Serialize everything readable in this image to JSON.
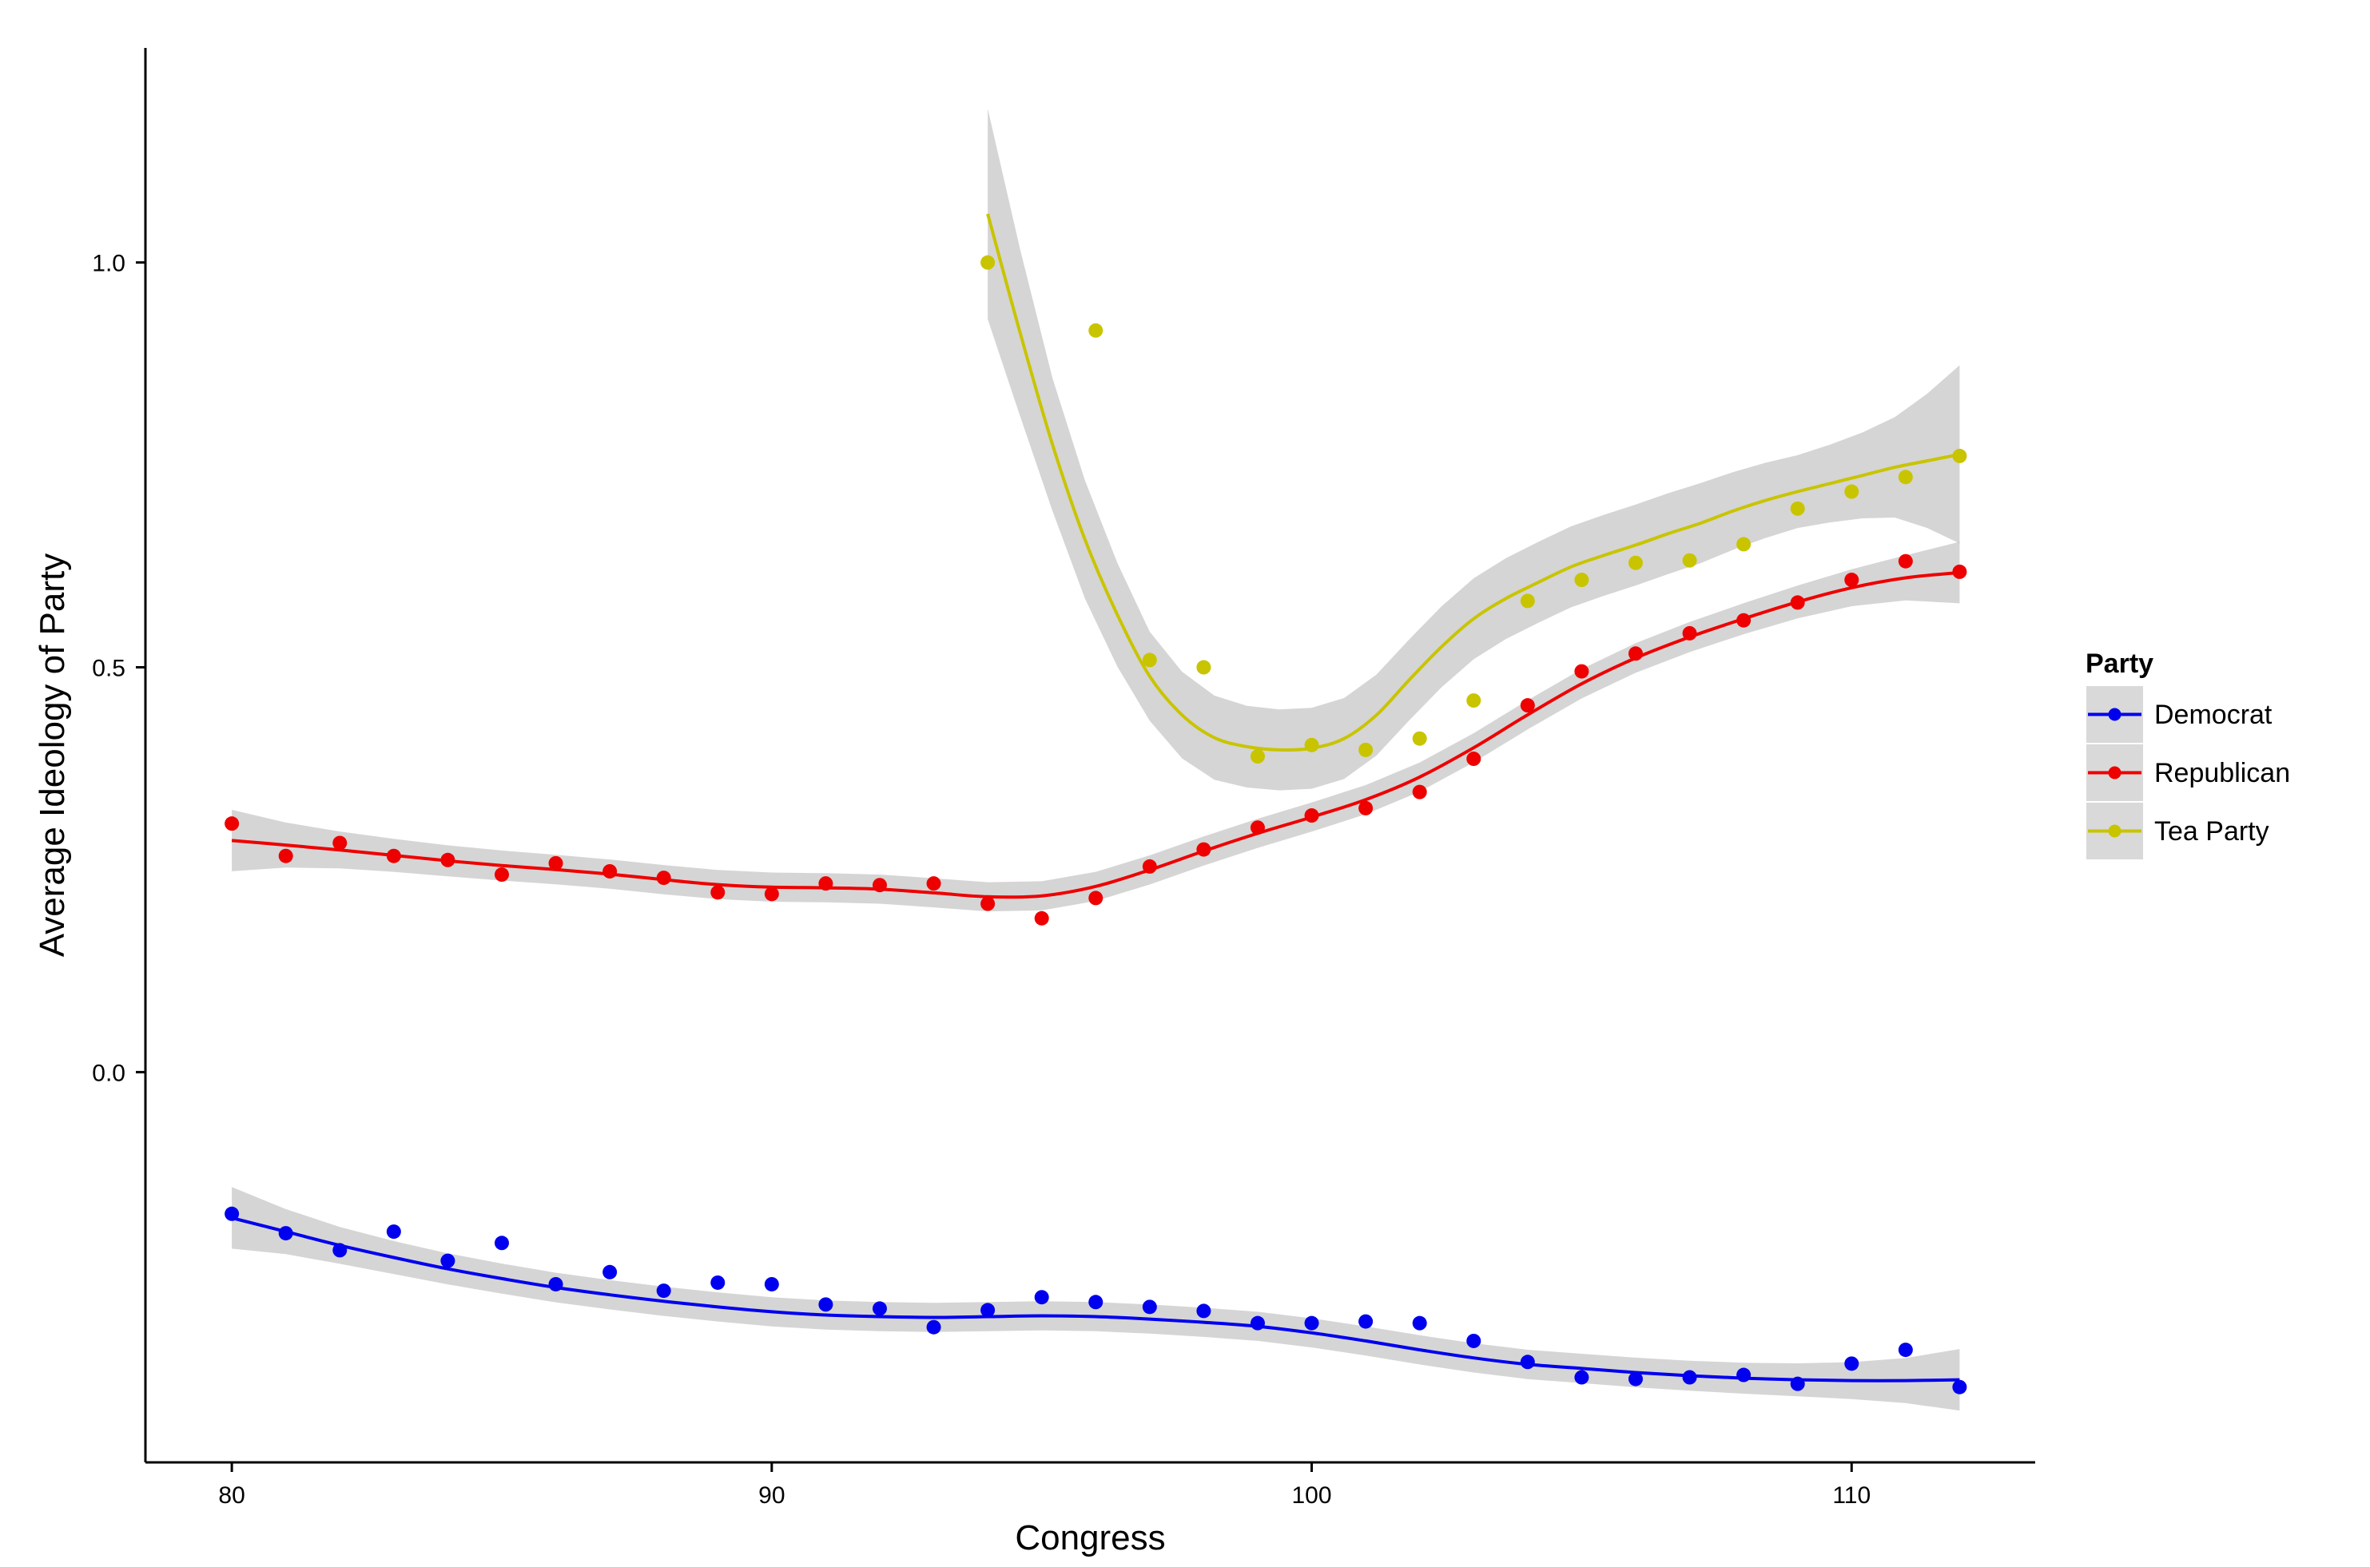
{
  "chart_data": {
    "type": "scatter",
    "xlabel": "Congress",
    "ylabel": "Average Ideology of Party",
    "xlim": [
      78.4,
      113.4
    ],
    "ylim": [
      -0.482,
      1.265
    ],
    "x_ticks": [
      80,
      90,
      100,
      110
    ],
    "y_ticks": [
      0.0,
      0.5,
      1.0
    ],
    "x_tick_labels": [
      "80",
      "90",
      "100",
      "110"
    ],
    "y_tick_labels": [
      "0.0",
      "0.5",
      "1.0"
    ],
    "grid": false,
    "legend": {
      "title": "Party",
      "placement": "right"
    },
    "series": [
      {
        "name": "Democrat",
        "color": "#0000ee",
        "x": [
          80,
          81,
          82,
          83,
          84,
          85,
          86,
          87,
          88,
          89,
          90,
          91,
          92,
          93,
          94,
          95,
          96,
          97,
          98,
          99,
          100,
          101,
          102,
          103,
          104,
          105,
          106,
          107,
          108,
          109,
          110,
          111,
          112
        ],
        "y": [
          -0.175,
          -0.199,
          -0.22,
          -0.197,
          -0.233,
          -0.211,
          -0.262,
          -0.247,
          -0.27,
          -0.26,
          -0.262,
          -0.287,
          -0.292,
          -0.315,
          -0.294,
          -0.278,
          -0.284,
          -0.29,
          -0.295,
          -0.31,
          -0.31,
          -0.308,
          -0.31,
          -0.332,
          -0.358,
          -0.377,
          -0.379,
          -0.377,
          -0.374,
          -0.385,
          -0.36,
          -0.343,
          -0.389
        ],
        "trend": [
          -0.18,
          -0.197,
          -0.214,
          -0.229,
          -0.243,
          -0.255,
          -0.266,
          -0.275,
          -0.283,
          -0.29,
          -0.296,
          -0.3,
          -0.302,
          -0.303,
          -0.302,
          -0.301,
          -0.302,
          -0.305,
          -0.309,
          -0.314,
          -0.322,
          -0.332,
          -0.343,
          -0.353,
          -0.361,
          -0.366,
          -0.371,
          -0.375,
          -0.378,
          -0.38,
          -0.381,
          -0.381,
          -0.38
        ]
      },
      {
        "name": "Republican",
        "color": "#ee0000",
        "x": [
          80,
          81,
          82,
          83,
          84,
          85,
          86,
          87,
          88,
          89,
          90,
          91,
          92,
          93,
          94,
          95,
          96,
          97,
          98,
          99,
          100,
          101,
          102,
          103,
          104,
          105,
          106,
          107,
          108,
          109,
          110,
          111,
          112
        ],
        "y": [
          0.307,
          0.267,
          0.283,
          0.267,
          0.262,
          0.244,
          0.258,
          0.248,
          0.24,
          0.222,
          0.22,
          0.233,
          0.231,
          0.233,
          0.208,
          0.19,
          0.215,
          0.254,
          0.275,
          0.302,
          0.317,
          0.326,
          0.346,
          0.387,
          0.453,
          0.495,
          0.517,
          0.542,
          0.558,
          0.58,
          0.608,
          0.631,
          0.618
        ]
      },
      {
        "name": "Tea Party",
        "color": "#c9c400",
        "x": [
          94,
          96,
          97,
          98,
          99,
          100,
          101,
          102,
          103,
          104,
          105,
          106,
          107,
          108,
          109,
          110,
          111,
          112
        ],
        "y": [
          1.0,
          0.916,
          0.509,
          0.5,
          0.39,
          0.404,
          0.398,
          0.412,
          0.459,
          0.582,
          0.608,
          0.629,
          0.632,
          0.652,
          0.696,
          0.717,
          0.735,
          0.761
        ],
        "trend": [
          1.06,
          0.913,
          0.775,
          0.658,
          0.565,
          0.489,
          0.441,
          0.413,
          0.402,
          0.398,
          0.4,
          0.412,
          0.441,
          0.484,
          0.525,
          0.56,
          0.585,
          0.605,
          0.624,
          0.638,
          0.651,
          0.665,
          0.678,
          0.693,
          0.706,
          0.717,
          0.727,
          0.737,
          0.747,
          0.755,
          0.763
        ]
      }
    ]
  }
}
